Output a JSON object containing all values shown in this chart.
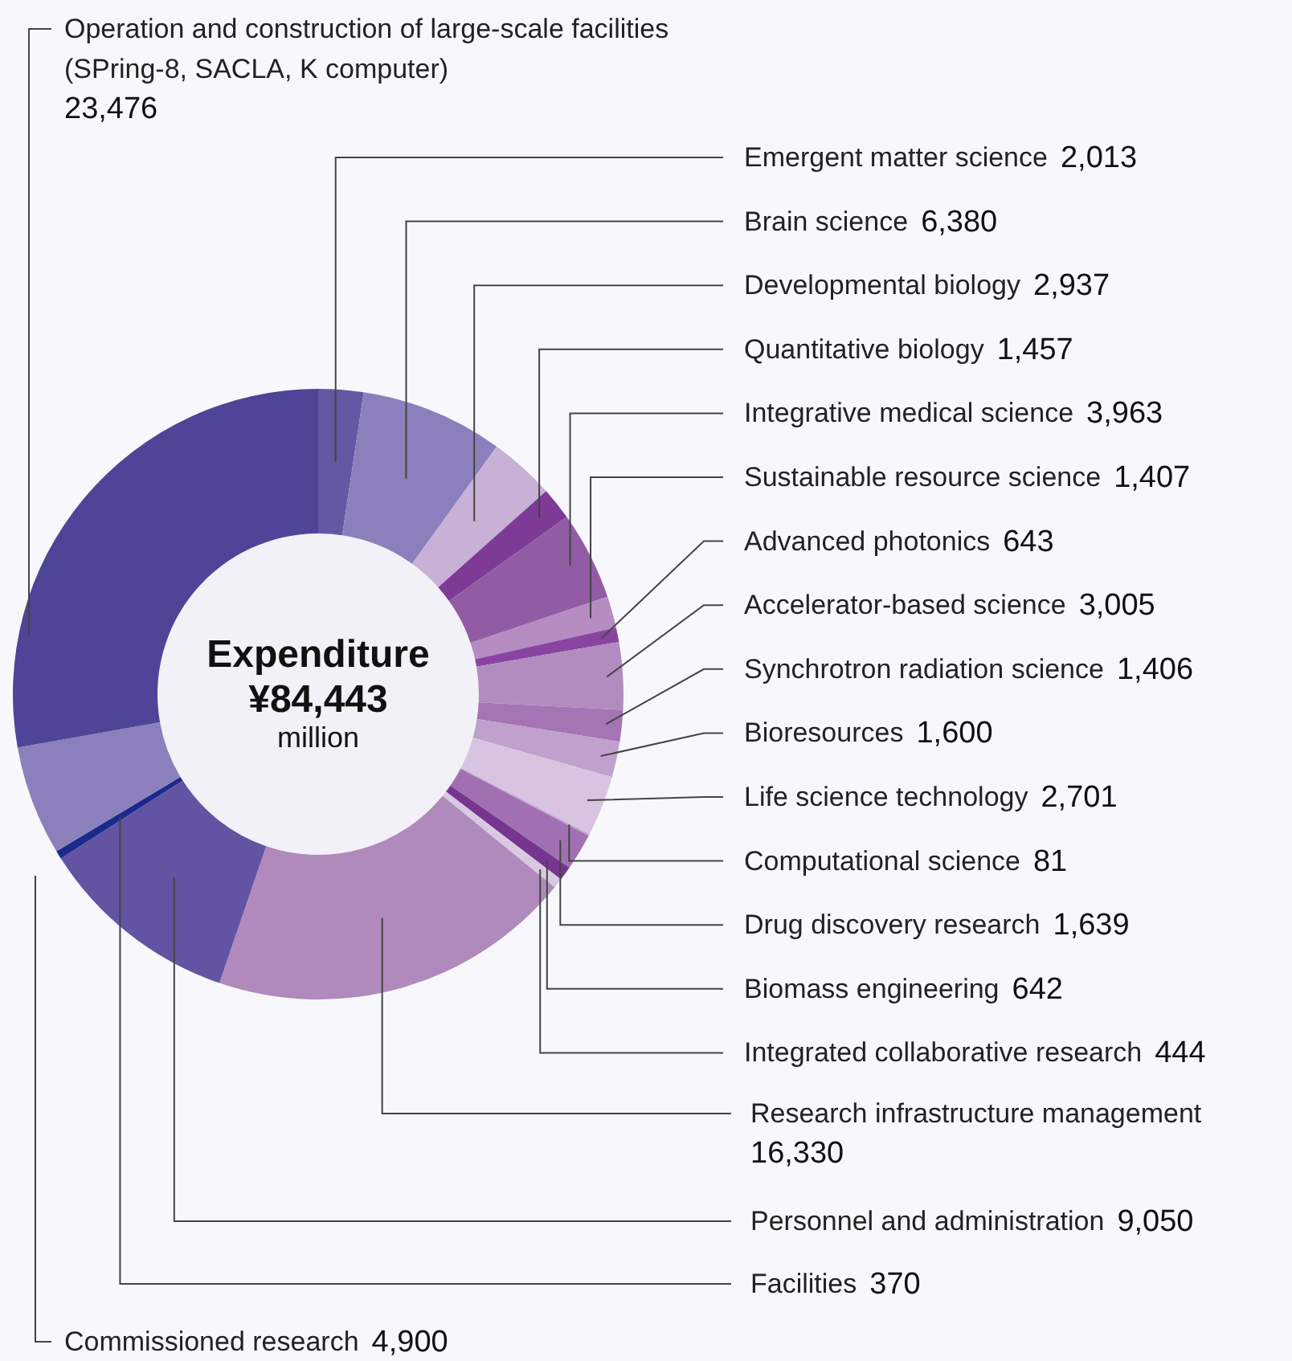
{
  "chart_data": {
    "type": "donut",
    "title": "Expenditure",
    "subtitle": "¥84,443",
    "annotations": [
      "million"
    ],
    "categories": [
      "Emergent matter science",
      "Brain science",
      "Developmental biology",
      "Quantitative biology",
      "Integrative medical science",
      "Sustainable resource science",
      "Advanced photonics",
      "Accelerator-based science",
      "Synchrotron radiation science",
      "Bioresources",
      "Life science technology",
      "Computational science",
      "Drug discovery research",
      "Biomass engineering",
      "Integrated collaborative research",
      "Research infrastructure management",
      "Personnel and administration",
      "Facilities",
      "Commissioned research",
      "Operation and construction of large-scale facilities (SPring-8, SACLA, K computer)"
    ],
    "values": [
      2013,
      6380,
      2937,
      1457,
      3963,
      1407,
      643,
      3005,
      1406,
      1600,
      2701,
      81,
      1639,
      642,
      444,
      16330,
      9050,
      370,
      4900,
      23476
    ],
    "colors": [
      "#6457a4",
      "#8b80bb",
      "#c8b0d6",
      "#7e3b96",
      "#925ca4",
      "#b48cc2",
      "#8944a2",
      "#b28cbf",
      "#a474b4",
      "#c0a0cc",
      "#d8c4e0",
      "#c4a4d0",
      "#a170b2",
      "#76368f",
      "#d8c8e2",
      "#b08abc",
      "#6254a2",
      "#1c2a8c",
      "#8b80bb",
      "#4e4598"
    ],
    "value_labels": [
      "2,013",
      "6,380",
      "2,937",
      "1,457",
      "3,963",
      "1,407",
      "643",
      "3,005",
      "1,406",
      "1,600",
      "2,701",
      "81",
      "1,639",
      "642",
      "444",
      "16,330",
      "9,050",
      "370",
      "4,900",
      "23,476"
    ]
  }
}
